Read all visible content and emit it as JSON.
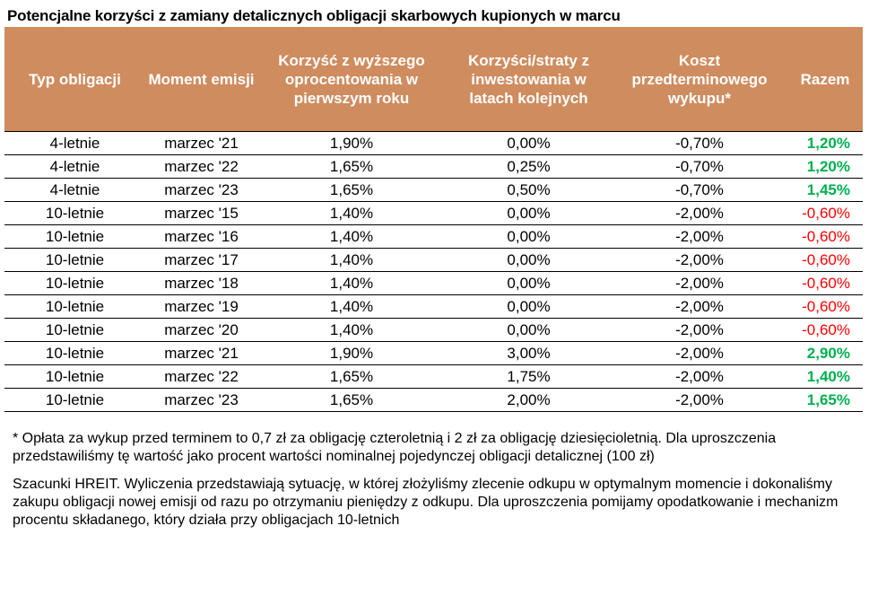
{
  "title": "Potencjalne korzyści z zamiany detalicznych obligacji skarbowych kupionych w marcu",
  "table": {
    "headers": [
      "Typ obligacji",
      "Moment emisji",
      "Korzyść z wyższego oprocentowania w pierwszym roku",
      "Korzyści/straty z inwestowania w latach kolejnych",
      "Koszt przedterminowego wykupu*",
      "Razem"
    ],
    "rows": [
      [
        "4-letnie",
        "marzec '21",
        "1,90%",
        "0,00%",
        "-0,70%",
        "1,20%"
      ],
      [
        "4-letnie",
        "marzec '22",
        "1,65%",
        "0,25%",
        "-0,70%",
        "1,20%"
      ],
      [
        "4-letnie",
        "marzec '23",
        "1,65%",
        "0,50%",
        "-0,70%",
        "1,45%"
      ],
      [
        "10-letnie",
        "marzec '15",
        "1,40%",
        "0,00%",
        "-2,00%",
        "-0,60%"
      ],
      [
        "10-letnie",
        "marzec '16",
        "1,40%",
        "0,00%",
        "-2,00%",
        "-0,60%"
      ],
      [
        "10-letnie",
        "marzec '17",
        "1,40%",
        "0,00%",
        "-2,00%",
        "-0,60%"
      ],
      [
        "10-letnie",
        "marzec '18",
        "1,40%",
        "0,00%",
        "-2,00%",
        "-0,60%"
      ],
      [
        "10-letnie",
        "marzec '19",
        "1,40%",
        "0,00%",
        "-2,00%",
        "-0,60%"
      ],
      [
        "10-letnie",
        "marzec '20",
        "1,40%",
        "0,00%",
        "-2,00%",
        "-0,60%"
      ],
      [
        "10-letnie",
        "marzec '21",
        "1,90%",
        "3,00%",
        "-2,00%",
        "2,90%"
      ],
      [
        "10-letnie",
        "marzec '22",
        "1,65%",
        "1,75%",
        "-2,00%",
        "1,40%"
      ],
      [
        "10-letnie",
        "marzec '23",
        "1,65%",
        "2,00%",
        "-2,00%",
        "1,65%"
      ]
    ]
  },
  "colors": {
    "header_bg": "#CF8C5F",
    "positive": "#00B050",
    "negative": "#FF0000"
  },
  "notes": [
    "* Opłata za wykup przed terminem to 0,7 zł za obligację czteroletnią i 2 zł za obligację dziesięcioletnią. Dla uproszczenia przedstawiliśmy tę wartość jako procent wartości nominalnej pojedynczej obligacji detalicznej (100 zł)",
    "Szacunki HREIT. Wyliczenia przedstawiają sytuację, w której złożyliśmy zlecenie odkupu w optymalnym momencie i dokonaliśmy zakupu obligacji nowej emisji od razu po otrzymaniu pieniędzy z odkupu. Dla uproszczenia pomijamy opodatkowanie i mechanizm procentu składanego, który działa przy obligacjach 10-letnich"
  ]
}
